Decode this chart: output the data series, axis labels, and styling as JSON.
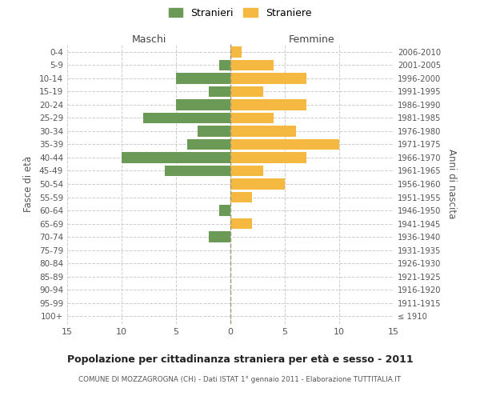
{
  "age_groups": [
    "100+",
    "95-99",
    "90-94",
    "85-89",
    "80-84",
    "75-79",
    "70-74",
    "65-69",
    "60-64",
    "55-59",
    "50-54",
    "45-49",
    "40-44",
    "35-39",
    "30-34",
    "25-29",
    "20-24",
    "15-19",
    "10-14",
    "5-9",
    "0-4"
  ],
  "birth_years": [
    "≤ 1910",
    "1911-1915",
    "1916-1920",
    "1921-1925",
    "1926-1930",
    "1931-1935",
    "1936-1940",
    "1941-1945",
    "1946-1950",
    "1951-1955",
    "1956-1960",
    "1961-1965",
    "1966-1970",
    "1971-1975",
    "1976-1980",
    "1981-1985",
    "1986-1990",
    "1991-1995",
    "1996-2000",
    "2001-2005",
    "2006-2010"
  ],
  "maschi": [
    0,
    0,
    0,
    0,
    0,
    0,
    2,
    0,
    1,
    0,
    0,
    6,
    10,
    4,
    3,
    8,
    5,
    2,
    5,
    1,
    0
  ],
  "femmine": [
    0,
    0,
    0,
    0,
    0,
    0,
    0,
    2,
    0,
    2,
    5,
    3,
    7,
    10,
    6,
    4,
    7,
    3,
    7,
    4,
    1
  ],
  "maschi_color": "#6a9a55",
  "femmine_color": "#f5b942",
  "title": "Popolazione per cittadinanza straniera per età e sesso - 2011",
  "subtitle": "COMUNE DI MOZZAGROGNA (CH) - Dati ISTAT 1° gennaio 2011 - Elaborazione TUTTITALIA.IT",
  "xlabel_left": "Maschi",
  "xlabel_right": "Femmine",
  "ylabel_left": "Fasce di età",
  "ylabel_right": "Anni di nascita",
  "xlim": 15,
  "legend_stranieri": "Stranieri",
  "legend_straniere": "Straniere",
  "background_color": "#ffffff",
  "grid_color": "#cccccc",
  "bar_height": 0.8
}
